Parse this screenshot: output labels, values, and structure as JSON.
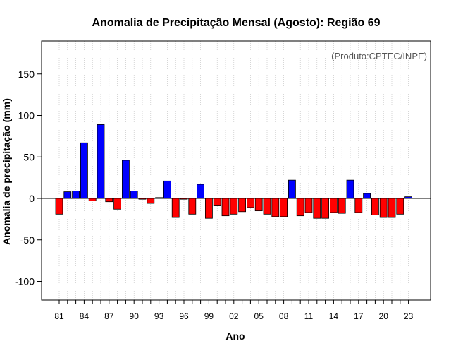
{
  "chart_data": {
    "type": "bar",
    "title": "Anomalia de Precipitação Mensal (Agosto): Região 69",
    "xlabel": "Ano",
    "ylabel": "Anomalia de precipitação (mm)",
    "credit": "(Produto:CPTEC/INPE)",
    "ylim": [
      -125,
      190
    ],
    "yticks": [
      -100,
      -50,
      0,
      50,
      100,
      150
    ],
    "grid": "vertical dotted",
    "years": [
      1981,
      1982,
      1983,
      1984,
      1985,
      1986,
      1987,
      1988,
      1989,
      1990,
      1991,
      1992,
      1993,
      1994,
      1995,
      1996,
      1997,
      1998,
      1999,
      2000,
      2001,
      2002,
      2003,
      2004,
      2005,
      2006,
      2007,
      2008,
      2009,
      2010,
      2011,
      2012,
      2013,
      2014,
      2015,
      2016,
      2017,
      2018,
      2019,
      2020,
      2021,
      2022,
      2023
    ],
    "values": [
      -19,
      8,
      9,
      67,
      -3,
      89,
      -4,
      -13,
      46,
      9,
      -1,
      -6,
      1,
      21,
      -23,
      -1,
      -19,
      17,
      -24,
      -9,
      -21,
      -19,
      -16,
      -11,
      -15,
      -19,
      -22,
      -22,
      22,
      -21,
      -17,
      -24,
      -24,
      -17,
      -18,
      22,
      -17,
      6,
      -20,
      -23,
      -23,
      -19,
      2
    ],
    "xtick_labels": [
      "81",
      "84",
      "87",
      "90",
      "93",
      "96",
      "99",
      "02",
      "05",
      "08",
      "11",
      "14",
      "17",
      "20",
      "23"
    ],
    "colors": {
      "positive": "#0000ff",
      "negative": "#ff0000",
      "frame": "#000000",
      "grid": "#bbbbbb"
    }
  }
}
